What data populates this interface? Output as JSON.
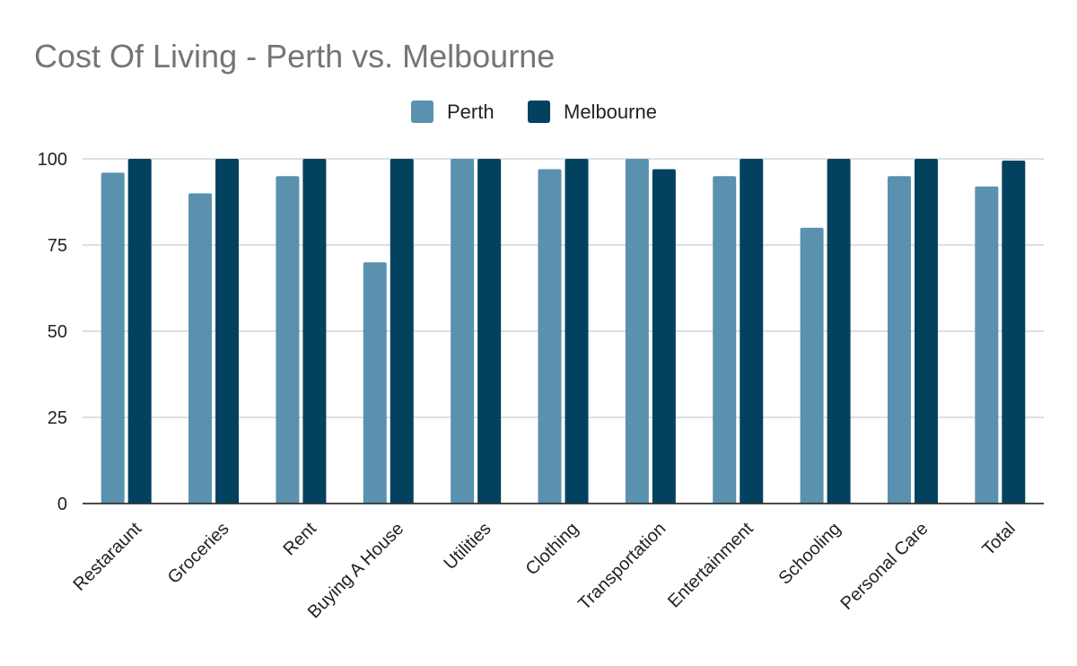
{
  "chart_data": {
    "type": "bar",
    "title": "Cost Of Living - Perth vs. Melbourne",
    "xlabel": "",
    "ylabel": "",
    "categories": [
      "Restaraunt",
      "Groceries",
      "Rent",
      "Buying A House",
      "Utilities",
      "Clothing",
      "Transportation",
      "Entertainment",
      "Schooling",
      "Personal Care",
      "Total"
    ],
    "series": [
      {
        "name": "Perth",
        "color": "#5a91ae",
        "values": [
          96,
          90,
          95,
          70,
          100,
          97,
          100,
          95,
          80,
          95,
          92
        ]
      },
      {
        "name": "Melbourne",
        "color": "#03425f",
        "values": [
          100,
          100,
          100,
          100,
          100,
          100,
          97,
          100,
          100,
          100,
          99.5
        ]
      }
    ],
    "ylim": [
      0,
      100
    ],
    "yticks": [
      0,
      25,
      50,
      75,
      100
    ],
    "yticklabels": [
      "0",
      "25",
      "50",
      "75",
      "100"
    ],
    "grid": true,
    "legend_position": "top-center"
  },
  "colors": {
    "title": "#757575",
    "gridline": "#cccccc",
    "axis": "#333333",
    "text": "#222222"
  }
}
